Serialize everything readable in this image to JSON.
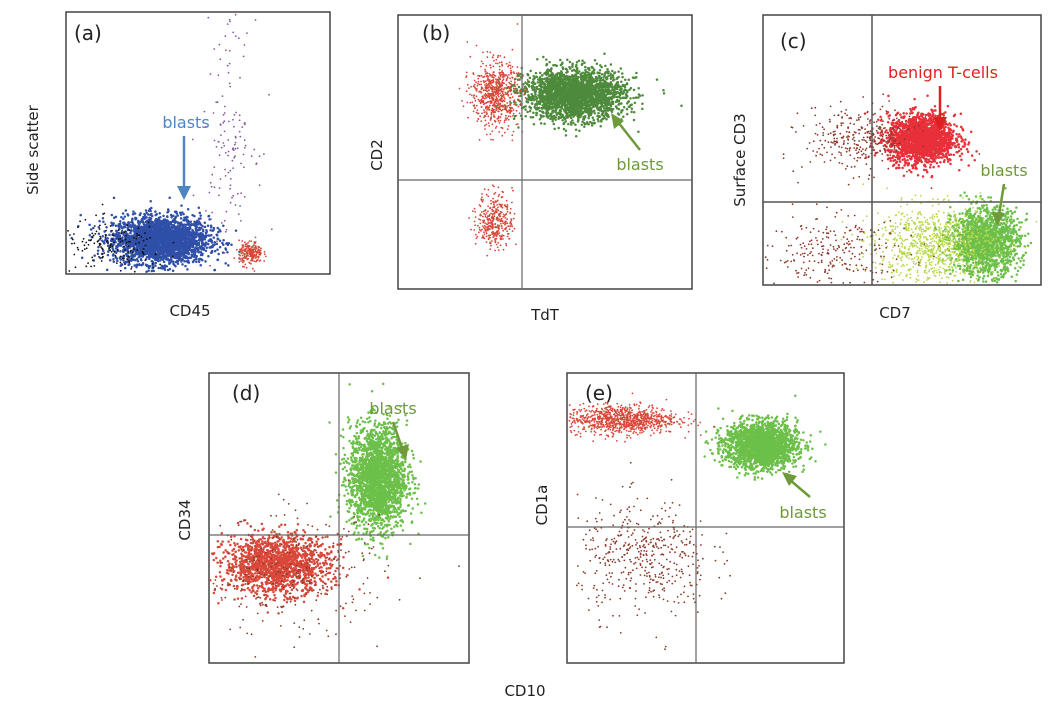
{
  "colors": {
    "background": "#ffffff",
    "frame": "#444444",
    "quadrant": "#666666",
    "blasts_blue": "#2F4FA8",
    "blasts_green_dark": "#4E8A3C",
    "blasts_green": "#6CC04A",
    "blasts_lime": "#B8D84A",
    "benign_red": "#E8303A",
    "red_dots": "#D9483A",
    "brown_dots": "#8B3A2A",
    "black_dots": "#111111",
    "purple_dots": "#8A5AA0",
    "text_blue": "#4F86C0",
    "text_green": "#6E9A3A",
    "text_red": "#E02020"
  },
  "chart_data": [
    {
      "type": "scatter",
      "panel": "(a)",
      "xlabel": "CD45",
      "ylabel": "Side scatter",
      "scale": "log",
      "quadrant_gates": false,
      "annotations": [
        {
          "text": "blasts",
          "arrow": "down",
          "color": "text_blue"
        }
      ],
      "populations": [
        {
          "label": "blasts",
          "color": "blasts_blue",
          "cx": 0.36,
          "cy": 0.13,
          "sx": 0.09,
          "sy": 0.045,
          "n": 2600
        },
        {
          "color": "red_dots",
          "cx": 0.7,
          "cy": 0.08,
          "sx": 0.022,
          "sy": 0.022,
          "n": 220
        },
        {
          "color": "black_dots",
          "cx": 0.18,
          "cy": 0.1,
          "sx": 0.1,
          "sy": 0.05,
          "n": 160
        },
        {
          "color": "purple_dots",
          "cx": 0.62,
          "cy": 0.55,
          "sx": 0.05,
          "sy": 0.22,
          "n": 140
        }
      ]
    },
    {
      "type": "scatter",
      "panel": "(b)",
      "xlabel": "TdT",
      "ylabel": "CD2",
      "scale": "log",
      "quadrant_gates": true,
      "annotations": [
        {
          "text": "blasts",
          "arrow": "up-left",
          "color": "text_green"
        }
      ],
      "populations": [
        {
          "label": "blasts",
          "color": "blasts_green_dark",
          "cx": 0.6,
          "cy": 0.71,
          "sx": 0.085,
          "sy": 0.045,
          "n": 2400
        },
        {
          "color": "red_dots",
          "cx": 0.33,
          "cy": 0.71,
          "sx": 0.04,
          "sy": 0.06,
          "n": 650
        },
        {
          "color": "red_dots",
          "cx": 0.33,
          "cy": 0.25,
          "sx": 0.03,
          "sy": 0.05,
          "n": 350
        }
      ]
    },
    {
      "type": "scatter",
      "panel": "(c)",
      "xlabel": "CD7",
      "ylabel": "Surface CD3",
      "scale": "log",
      "quadrant_gates": true,
      "annotations": [
        {
          "text": "benign T-cells",
          "arrow": "down",
          "color": "text_red"
        },
        {
          "text": "blasts",
          "arrow": "down-left",
          "color": "text_green"
        }
      ],
      "populations": [
        {
          "label": "benign T-cells",
          "color": "benign_red",
          "cx": 0.57,
          "cy": 0.54,
          "sx": 0.06,
          "sy": 0.045,
          "n": 1800
        },
        {
          "color": "brown_dots",
          "cx": 0.35,
          "cy": 0.54,
          "sx": 0.1,
          "sy": 0.06,
          "n": 320
        },
        {
          "label": "blasts",
          "color": "blasts_green",
          "cx": 0.8,
          "cy": 0.16,
          "sx": 0.06,
          "sy": 0.06,
          "n": 1500
        },
        {
          "color": "blasts_lime",
          "cx": 0.62,
          "cy": 0.15,
          "sx": 0.11,
          "sy": 0.07,
          "n": 900
        },
        {
          "color": "brown_dots",
          "cx": 0.25,
          "cy": 0.12,
          "sx": 0.14,
          "sy": 0.07,
          "n": 260
        }
      ]
    },
    {
      "type": "scatter",
      "panel": "(d)",
      "xlabel": "CD10",
      "ylabel": "CD34",
      "scale": "log",
      "quadrant_gates": true,
      "annotations": [
        {
          "text": "blasts",
          "arrow": "down",
          "color": "text_green"
        }
      ],
      "populations": [
        {
          "label": "blasts",
          "color": "blasts_green",
          "cx": 0.65,
          "cy": 0.64,
          "sx": 0.055,
          "sy": 0.09,
          "n": 2200
        },
        {
          "color": "red_dots",
          "cx": 0.26,
          "cy": 0.34,
          "sx": 0.1,
          "sy": 0.05,
          "n": 1500
        },
        {
          "color": "brown_dots",
          "cx": 0.32,
          "cy": 0.3,
          "sx": 0.18,
          "sy": 0.1,
          "n": 300
        }
      ]
    },
    {
      "type": "scatter",
      "panel": "(e)",
      "xlabel": "",
      "ylabel": "CD1a",
      "scale": "log",
      "quadrant_gates": true,
      "annotations": [
        {
          "text": "blasts",
          "arrow": "up-left",
          "color": "text_green"
        }
      ],
      "populations": [
        {
          "label": "blasts",
          "color": "blasts_green",
          "cx": 0.7,
          "cy": 0.75,
          "sx": 0.065,
          "sy": 0.04,
          "n": 2000
        },
        {
          "color": "red_dots",
          "cx": 0.2,
          "cy": 0.84,
          "sx": 0.1,
          "sy": 0.025,
          "n": 900
        },
        {
          "color": "brown_dots",
          "cx": 0.28,
          "cy": 0.36,
          "sx": 0.12,
          "sy": 0.1,
          "n": 450
        }
      ]
    }
  ]
}
